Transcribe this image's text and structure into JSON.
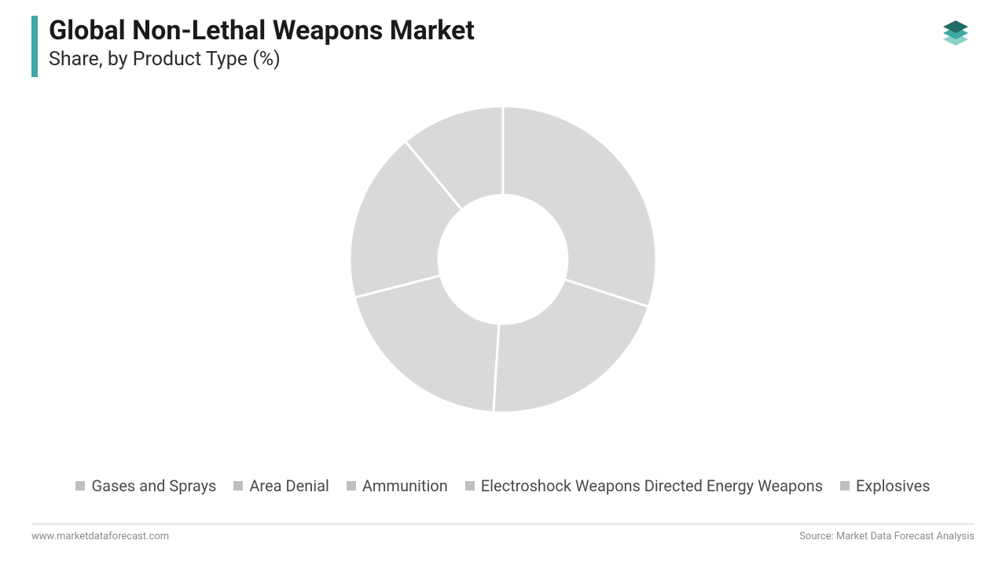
{
  "header": {
    "title": "Global Non-Lethal Weapons Market",
    "subtitle": "Share, by Product Type (%)",
    "accent_color": "#3fa9a3",
    "title_color": "#1a1a1a",
    "title_fontsize": 34,
    "subtitle_fontsize": 25
  },
  "logo": {
    "layer_top_color": "#1f6b63",
    "layer_mid_color": "#3fa9a3",
    "layer_bot_color": "#8fd0cb"
  },
  "chart": {
    "type": "donut",
    "inner_radius_ratio": 0.42,
    "outer_radius": 195,
    "slice_color": "#d9d9d9",
    "divider_color": "#ffffff",
    "divider_width": 3,
    "background_color": "#ffffff",
    "slices": [
      {
        "label": "Gases and Sprays",
        "value": 30
      },
      {
        "label": "Area Denial",
        "value": 21
      },
      {
        "label": "Ammunition",
        "value": 20
      },
      {
        "label": "Electroshock Weapons Directed Energy Weapons",
        "value": 18
      },
      {
        "label": "Explosives",
        "value": 11
      }
    ]
  },
  "legend": {
    "swatch_color": "#bfbfbf",
    "text_color": "#4a4a4a",
    "fontsize": 20,
    "items": [
      "Gases and Sprays",
      "Area Denial",
      "Ammunition",
      "Electroshock Weapons Directed Energy Weapons",
      "Explosives"
    ]
  },
  "footer": {
    "left": "www.marketdataforecast.com",
    "right": "Source: Market Data Forecast Analysis",
    "line_color": "#cfcfcf",
    "text_color": "#8a8a8a",
    "fontsize": 13
  }
}
